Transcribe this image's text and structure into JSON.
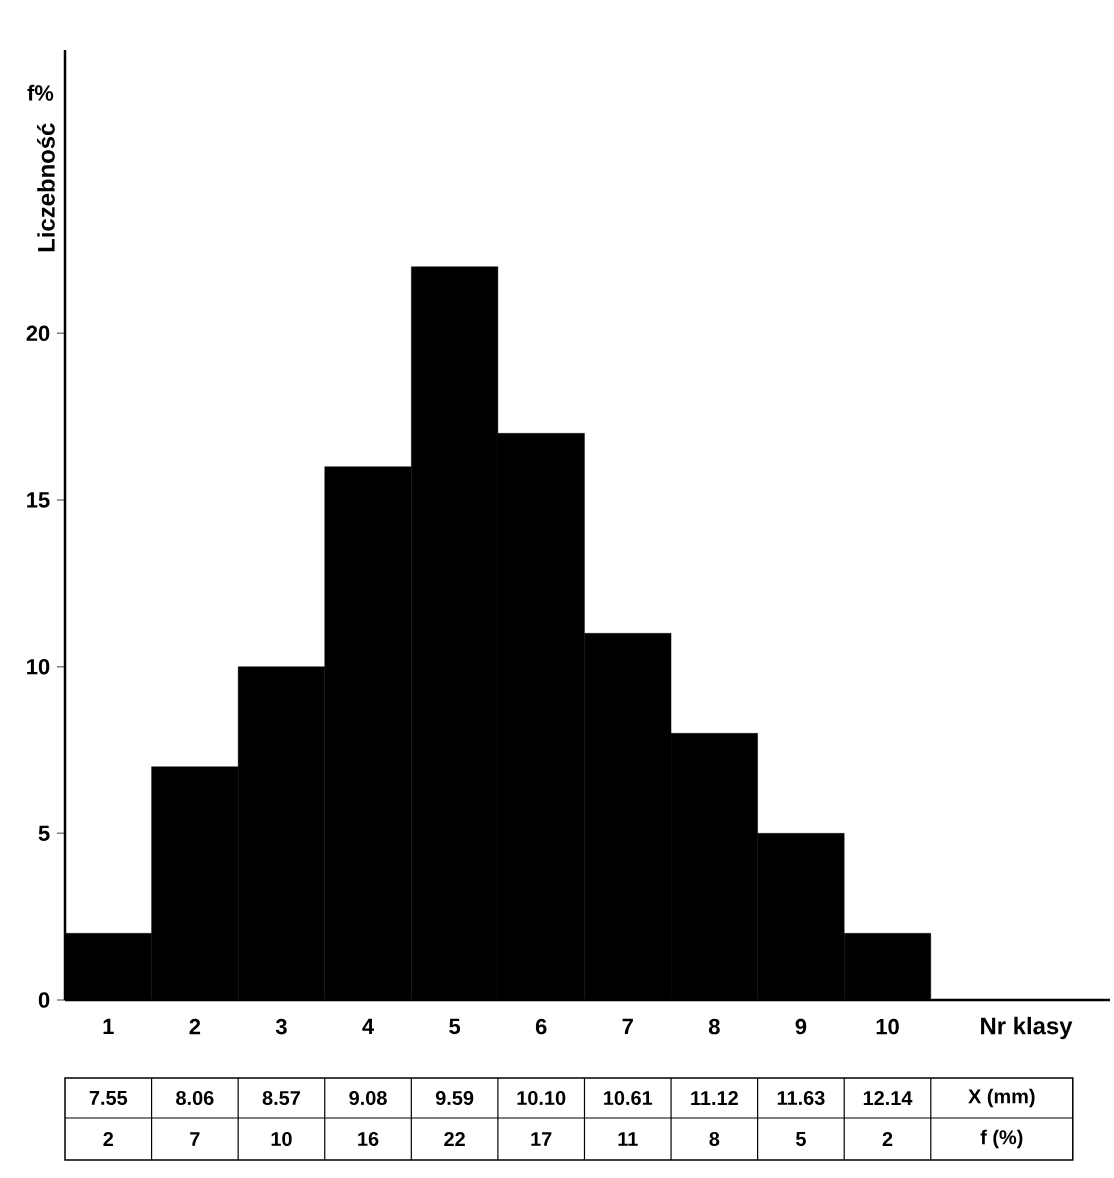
{
  "chart_data": {
    "type": "bar",
    "categories": [
      "1",
      "2",
      "3",
      "4",
      "5",
      "6",
      "7",
      "8",
      "9",
      "10"
    ],
    "values": [
      2,
      7,
      10,
      16,
      22,
      17,
      11,
      8,
      5,
      2
    ],
    "color": "#000000",
    "ylim": [
      0,
      28.5
    ],
    "yticks": [
      0,
      5,
      10,
      15,
      20
    ],
    "xlabel": "Nr klasy",
    "ylabel": "Liczebność",
    "data_labels": true,
    "annotations": [
      "f%",
      "7.55",
      "8.06",
      "8.57",
      "9.08",
      "9.59",
      "10.10",
      "10.61",
      "11.12",
      "11.63",
      "12.14",
      "X (mm)",
      "f (%)"
    ]
  }
}
